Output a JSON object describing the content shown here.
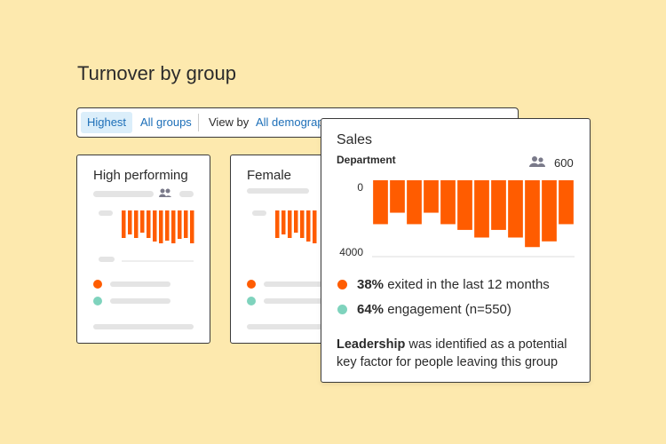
{
  "header": {
    "title": "Turnover by group"
  },
  "filters": {
    "highest": "Highest",
    "all_groups": "All groups",
    "view_by": "View by",
    "demographics": "All demograp"
  },
  "groups": [
    {
      "label": "High performing"
    },
    {
      "label": "Female"
    }
  ],
  "chart_data": {
    "type": "bar",
    "title": "Sales",
    "subtitle": "Department",
    "headcount": "600",
    "values": [
      2300,
      1700,
      2300,
      1700,
      2300,
      2600,
      3000,
      2600,
      3000,
      3500,
      3200,
      2300
    ],
    "color": "#ff5c00",
    "ylim": [
      0,
      4000
    ],
    "yticks": [
      0,
      4000
    ],
    "inverted": true
  },
  "stats": [
    {
      "value": "38%",
      "text": "exited in the last 12 months",
      "color": "#ff5c00"
    },
    {
      "value": "64%",
      "text": "engagement (n=550)",
      "color": "#7fd3bd"
    }
  ],
  "insight": {
    "bold": "Leadership",
    "text": "was identified as a potential key factor for people leaving this group"
  }
}
